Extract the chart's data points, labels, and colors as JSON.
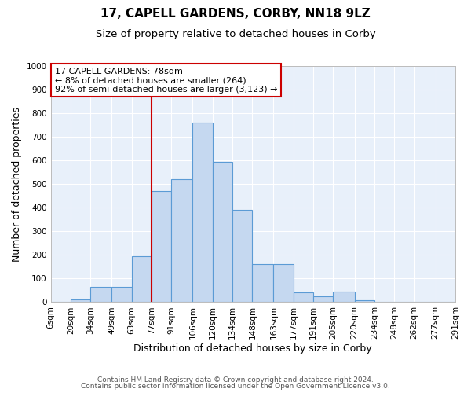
{
  "title": "17, CAPELL GARDENS, CORBY, NN18 9LZ",
  "subtitle": "Size of property relative to detached houses in Corby",
  "xlabel": "Distribution of detached houses by size in Corby",
  "ylabel": "Number of detached properties",
  "bin_labels": [
    "6sqm",
    "20sqm",
    "34sqm",
    "49sqm",
    "63sqm",
    "77sqm",
    "91sqm",
    "106sqm",
    "120sqm",
    "134sqm",
    "148sqm",
    "163sqm",
    "177sqm",
    "191sqm",
    "205sqm",
    "220sqm",
    "234sqm",
    "248sqm",
    "262sqm",
    "277sqm",
    "291sqm"
  ],
  "bin_edges": [
    6,
    20,
    34,
    49,
    63,
    77,
    91,
    106,
    120,
    134,
    148,
    163,
    177,
    191,
    205,
    220,
    234,
    248,
    262,
    277,
    291
  ],
  "bar_heights": [
    0,
    13,
    65,
    65,
    195,
    470,
    520,
    760,
    595,
    390,
    160,
    160,
    40,
    25,
    45,
    8,
    0,
    0,
    0,
    0
  ],
  "bar_color": "#c5d8f0",
  "bar_edge_color": "#5b9bd5",
  "vline_x": 77,
  "vline_color": "#cc0000",
  "annotation_line1": "17 CAPELL GARDENS: 78sqm",
  "annotation_line2": "← 8% of detached houses are smaller (264)",
  "annotation_line3": "92% of semi-detached houses are larger (3,123) →",
  "annotation_box_color": "#ffffff",
  "annotation_box_edge_color": "#cc0000",
  "ylim": [
    0,
    1000
  ],
  "yticks": [
    0,
    100,
    200,
    300,
    400,
    500,
    600,
    700,
    800,
    900,
    1000
  ],
  "footer_line1": "Contains HM Land Registry data © Crown copyright and database right 2024.",
  "footer_line2": "Contains public sector information licensed under the Open Government Licence v3.0.",
  "bg_color": "#ffffff",
  "plot_bg_color": "#e8f0fa",
  "grid_color": "#ffffff",
  "title_fontsize": 11,
  "subtitle_fontsize": 9.5,
  "axis_label_fontsize": 9,
  "tick_fontsize": 7.5,
  "annotation_fontsize": 8,
  "footer_fontsize": 6.5
}
